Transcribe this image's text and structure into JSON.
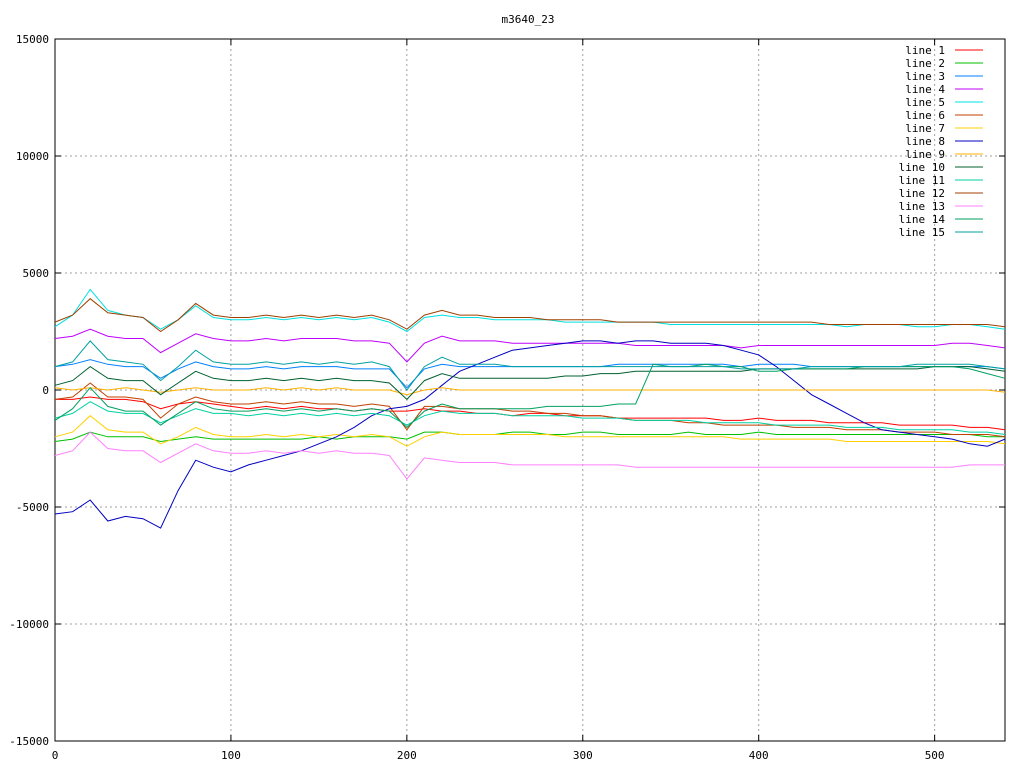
{
  "chart_data": {
    "type": "line",
    "title": "m3640_23",
    "xlabel": "",
    "ylabel": "",
    "xlim": [
      0,
      540
    ],
    "ylim": [
      -15000,
      15000
    ],
    "xticks": [
      0,
      100,
      200,
      300,
      400,
      500
    ],
    "yticks": [
      -15000,
      -10000,
      -5000,
      0,
      5000,
      10000,
      15000
    ],
    "grid": true,
    "legend_position": "top-right",
    "x": [
      0,
      10,
      20,
      30,
      40,
      50,
      60,
      70,
      80,
      90,
      100,
      110,
      120,
      130,
      140,
      150,
      160,
      170,
      180,
      190,
      200,
      210,
      220,
      230,
      240,
      250,
      260,
      270,
      280,
      290,
      300,
      310,
      320,
      330,
      340,
      350,
      360,
      370,
      380,
      390,
      400,
      410,
      420,
      430,
      440,
      450,
      460,
      470,
      480,
      490,
      500,
      510,
      520,
      530,
      540
    ],
    "series": [
      {
        "name": "line 1",
        "color": "#ff0000",
        "values": [
          -400,
          -400,
          -300,
          -400,
          -400,
          -500,
          -800,
          -600,
          -500,
          -600,
          -700,
          -800,
          -700,
          -800,
          -700,
          -800,
          -800,
          -900,
          -800,
          -900,
          -900,
          -800,
          -900,
          -900,
          -1000,
          -1000,
          -1100,
          -1000,
          -1000,
          -1100,
          -1100,
          -1100,
          -1200,
          -1200,
          -1200,
          -1200,
          -1200,
          -1200,
          -1300,
          -1300,
          -1200,
          -1300,
          -1300,
          -1300,
          -1400,
          -1400,
          -1400,
          -1400,
          -1500,
          -1500,
          -1500,
          -1500,
          -1600,
          -1600,
          -1700
        ]
      },
      {
        "name": "line 2",
        "color": "#00c000",
        "values": [
          -2200,
          -2100,
          -1800,
          -2000,
          -2000,
          -2000,
          -2200,
          -2100,
          -2000,
          -2100,
          -2100,
          -2100,
          -2100,
          -2100,
          -2100,
          -2000,
          -2100,
          -2000,
          -2000,
          -2000,
          -2100,
          -1800,
          -1800,
          -1900,
          -1900,
          -1900,
          -1800,
          -1800,
          -1900,
          -1900,
          -1800,
          -1800,
          -1900,
          -1900,
          -1900,
          -1900,
          -1800,
          -1900,
          -1900,
          -1900,
          -1800,
          -1900,
          -1900,
          -1900,
          -1900,
          -1900,
          -1900,
          -1900,
          -1900,
          -1900,
          -1900,
          -1900,
          -1900,
          -2000,
          -2000
        ]
      },
      {
        "name": "line 3",
        "color": "#0080ff",
        "values": [
          1000,
          1100,
          1300,
          1100,
          1000,
          1000,
          500,
          900,
          1200,
          1000,
          900,
          900,
          1000,
          900,
          1000,
          1000,
          1000,
          900,
          900,
          900,
          100,
          900,
          1100,
          1000,
          1000,
          1000,
          1000,
          1000,
          1000,
          1000,
          1000,
          1000,
          1100,
          1100,
          1100,
          1100,
          1100,
          1100,
          1100,
          1000,
          1100,
          1100,
          1100,
          1000,
          1000,
          1000,
          1000,
          1000,
          1000,
          1000,
          1000,
          1000,
          1000,
          1000,
          900
        ]
      },
      {
        "name": "line 4",
        "color": "#c000ff",
        "values": [
          2200,
          2300,
          2600,
          2300,
          2200,
          2200,
          1600,
          2000,
          2400,
          2200,
          2100,
          2100,
          2200,
          2100,
          2200,
          2200,
          2200,
          2100,
          2100,
          2000,
          1200,
          2000,
          2300,
          2100,
          2100,
          2100,
          2000,
          2000,
          2000,
          2000,
          2000,
          2000,
          2000,
          1900,
          1900,
          1900,
          1900,
          1900,
          1900,
          1800,
          1900,
          1900,
          1900,
          1900,
          1900,
          1900,
          1900,
          1900,
          1900,
          1900,
          1900,
          2000,
          2000,
          1900,
          1800
        ]
      },
      {
        "name": "line 5",
        "color": "#00e0e0",
        "values": [
          2700,
          3200,
          4300,
          3400,
          3200,
          3100,
          2600,
          3000,
          3600,
          3100,
          3000,
          3000,
          3100,
          3000,
          3100,
          3000,
          3100,
          3000,
          3100,
          2900,
          2500,
          3100,
          3200,
          3100,
          3100,
          3000,
          3000,
          3000,
          3000,
          2900,
          2900,
          2900,
          2900,
          2900,
          2900,
          2800,
          2800,
          2800,
          2800,
          2800,
          2800,
          2800,
          2800,
          2800,
          2800,
          2700,
          2800,
          2800,
          2800,
          2700,
          2700,
          2800,
          2800,
          2700,
          2600
        ]
      },
      {
        "name": "line 6",
        "color": "#c04000",
        "values": [
          -400,
          -300,
          300,
          -300,
          -300,
          -400,
          -1200,
          -600,
          -300,
          -500,
          -600,
          -600,
          -500,
          -600,
          -500,
          -600,
          -600,
          -700,
          -600,
          -700,
          -1700,
          -700,
          -700,
          -800,
          -800,
          -800,
          -900,
          -900,
          -1000,
          -1000,
          -1100,
          -1100,
          -1200,
          -1300,
          -1300,
          -1300,
          -1400,
          -1400,
          -1500,
          -1500,
          -1500,
          -1500,
          -1600,
          -1600,
          -1600,
          -1700,
          -1700,
          -1700,
          -1800,
          -1800,
          -1800,
          -1900,
          -1900,
          -1900,
          -2000
        ]
      },
      {
        "name": "line 7",
        "color": "#ffd000",
        "values": [
          -2000,
          -1800,
          -1100,
          -1700,
          -1800,
          -1800,
          -2300,
          -2000,
          -1600,
          -1900,
          -2000,
          -2000,
          -1900,
          -2000,
          -1900,
          -2000,
          -1900,
          -2000,
          -1900,
          -2000,
          -2400,
          -2000,
          -1800,
          -1900,
          -1900,
          -1900,
          -1900,
          -1900,
          -1900,
          -2000,
          -2000,
          -2000,
          -2000,
          -2000,
          -2000,
          -2000,
          -2000,
          -2000,
          -2000,
          -2100,
          -2100,
          -2100,
          -2100,
          -2100,
          -2100,
          -2200,
          -2200,
          -2200,
          -2200,
          -2200,
          -2200,
          -2200,
          -2200,
          -2200,
          -2300
        ]
      },
      {
        "name": "line 8",
        "color": "#0000c0",
        "values": [
          -5300,
          -5200,
          -4700,
          -5600,
          -5400,
          -5500,
          -5900,
          -4300,
          -3000,
          -3300,
          -3500,
          -3200,
          -3000,
          -2800,
          -2600,
          -2300,
          -2000,
          -1600,
          -1100,
          -800,
          -700,
          -400,
          200,
          800,
          1100,
          1400,
          1700,
          1800,
          1900,
          2000,
          2100,
          2100,
          2000,
          2100,
          2100,
          2000,
          2000,
          2000,
          1900,
          1700,
          1500,
          1000,
          400,
          -200,
          -600,
          -1000,
          -1400,
          -1700,
          -1800,
          -1900,
          -2000,
          -2100,
          -2300,
          -2400,
          -2100
        ]
      },
      {
        "name": "line 9",
        "color": "#ffb000",
        "values": [
          100,
          0,
          100,
          0,
          100,
          0,
          -100,
          0,
          100,
          0,
          0,
          0,
          100,
          0,
          100,
          0,
          100,
          0,
          0,
          0,
          -200,
          0,
          100,
          0,
          0,
          0,
          0,
          0,
          0,
          0,
          0,
          0,
          0,
          0,
          0,
          0,
          0,
          0,
          0,
          0,
          0,
          0,
          0,
          0,
          0,
          0,
          0,
          0,
          0,
          0,
          0,
          0,
          0,
          0,
          -100
        ]
      },
      {
        "name": "line 10",
        "color": "#006030",
        "values": [
          200,
          400,
          1000,
          500,
          400,
          400,
          -200,
          300,
          800,
          500,
          400,
          400,
          500,
          400,
          500,
          400,
          500,
          400,
          400,
          300,
          -400,
          400,
          700,
          500,
          500,
          500,
          500,
          500,
          500,
          600,
          600,
          700,
          700,
          800,
          800,
          800,
          800,
          800,
          800,
          800,
          900,
          900,
          900,
          900,
          900,
          900,
          900,
          900,
          900,
          900,
          1000,
          1000,
          1000,
          900,
          800
        ]
      },
      {
        "name": "line 11",
        "color": "#00d0a0",
        "values": [
          -1200,
          -1000,
          -500,
          -900,
          -1000,
          -1000,
          -1400,
          -1100,
          -800,
          -1000,
          -1000,
          -1100,
          -1000,
          -1100,
          -1000,
          -1100,
          -1000,
          -1100,
          -1000,
          -1100,
          -1500,
          -1100,
          -900,
          -1000,
          -1000,
          -1000,
          -1100,
          -1100,
          -1100,
          -1100,
          -1200,
          -1200,
          -1200,
          -1300,
          -1300,
          -1300,
          -1300,
          -1400,
          -1400,
          -1400,
          -1400,
          -1500,
          -1500,
          -1500,
          -1500,
          -1600,
          -1600,
          -1600,
          -1700,
          -1700,
          -1700,
          -1700,
          -1800,
          -1800,
          -1900
        ]
      },
      {
        "name": "line 12",
        "color": "#a04000",
        "values": [
          2900,
          3200,
          3900,
          3300,
          3200,
          3100,
          2500,
          3000,
          3700,
          3200,
          3100,
          3100,
          3200,
          3100,
          3200,
          3100,
          3200,
          3100,
          3200,
          3000,
          2600,
          3200,
          3400,
          3200,
          3200,
          3100,
          3100,
          3100,
          3000,
          3000,
          3000,
          3000,
          2900,
          2900,
          2900,
          2900,
          2900,
          2900,
          2900,
          2900,
          2900,
          2900,
          2900,
          2900,
          2800,
          2800,
          2800,
          2800,
          2800,
          2800,
          2800,
          2800,
          2800,
          2800,
          2700
        ]
      },
      {
        "name": "line 13",
        "color": "#ff80ff",
        "values": [
          -2800,
          -2600,
          -1800,
          -2500,
          -2600,
          -2600,
          -3100,
          -2700,
          -2300,
          -2600,
          -2700,
          -2700,
          -2600,
          -2700,
          -2600,
          -2700,
          -2600,
          -2700,
          -2700,
          -2800,
          -3800,
          -2900,
          -3000,
          -3100,
          -3100,
          -3100,
          -3200,
          -3200,
          -3200,
          -3200,
          -3200,
          -3200,
          -3200,
          -3300,
          -3300,
          -3300,
          -3300,
          -3300,
          -3300,
          -3300,
          -3300,
          -3300,
          -3300,
          -3300,
          -3300,
          -3300,
          -3300,
          -3300,
          -3300,
          -3300,
          -3300,
          -3300,
          -3200,
          -3200,
          -3200
        ]
      },
      {
        "name": "line 14",
        "color": "#00a060",
        "values": [
          -1300,
          -800,
          100,
          -700,
          -900,
          -900,
          -1500,
          -1000,
          -500,
          -800,
          -900,
          -900,
          -800,
          -900,
          -800,
          -900,
          -800,
          -900,
          -800,
          -900,
          -1600,
          -900,
          -600,
          -800,
          -800,
          -800,
          -800,
          -800,
          -700,
          -700,
          -700,
          -700,
          -600,
          -600,
          1100,
          1000,
          1000,
          1100,
          1000,
          1000,
          800,
          800,
          900,
          900,
          900,
          900,
          1000,
          1000,
          1000,
          1000,
          1000,
          1000,
          900,
          700,
          500
        ]
      },
      {
        "name": "line 15",
        "color": "#00a0a0",
        "values": [
          1000,
          1200,
          2100,
          1300,
          1200,
          1100,
          400,
          1000,
          1700,
          1200,
          1100,
          1100,
          1200,
          1100,
          1200,
          1100,
          1200,
          1100,
          1200,
          1000,
          0,
          1000,
          1400,
          1100,
          1100,
          1100,
          1000,
          1000,
          1000,
          1000,
          1000,
          1000,
          1000,
          1000,
          1000,
          1000,
          1000,
          1000,
          1000,
          900,
          900,
          900,
          900,
          1000,
          1000,
          1000,
          1000,
          1000,
          1000,
          1100,
          1100,
          1100,
          1100,
          1000,
          900
        ]
      }
    ]
  }
}
